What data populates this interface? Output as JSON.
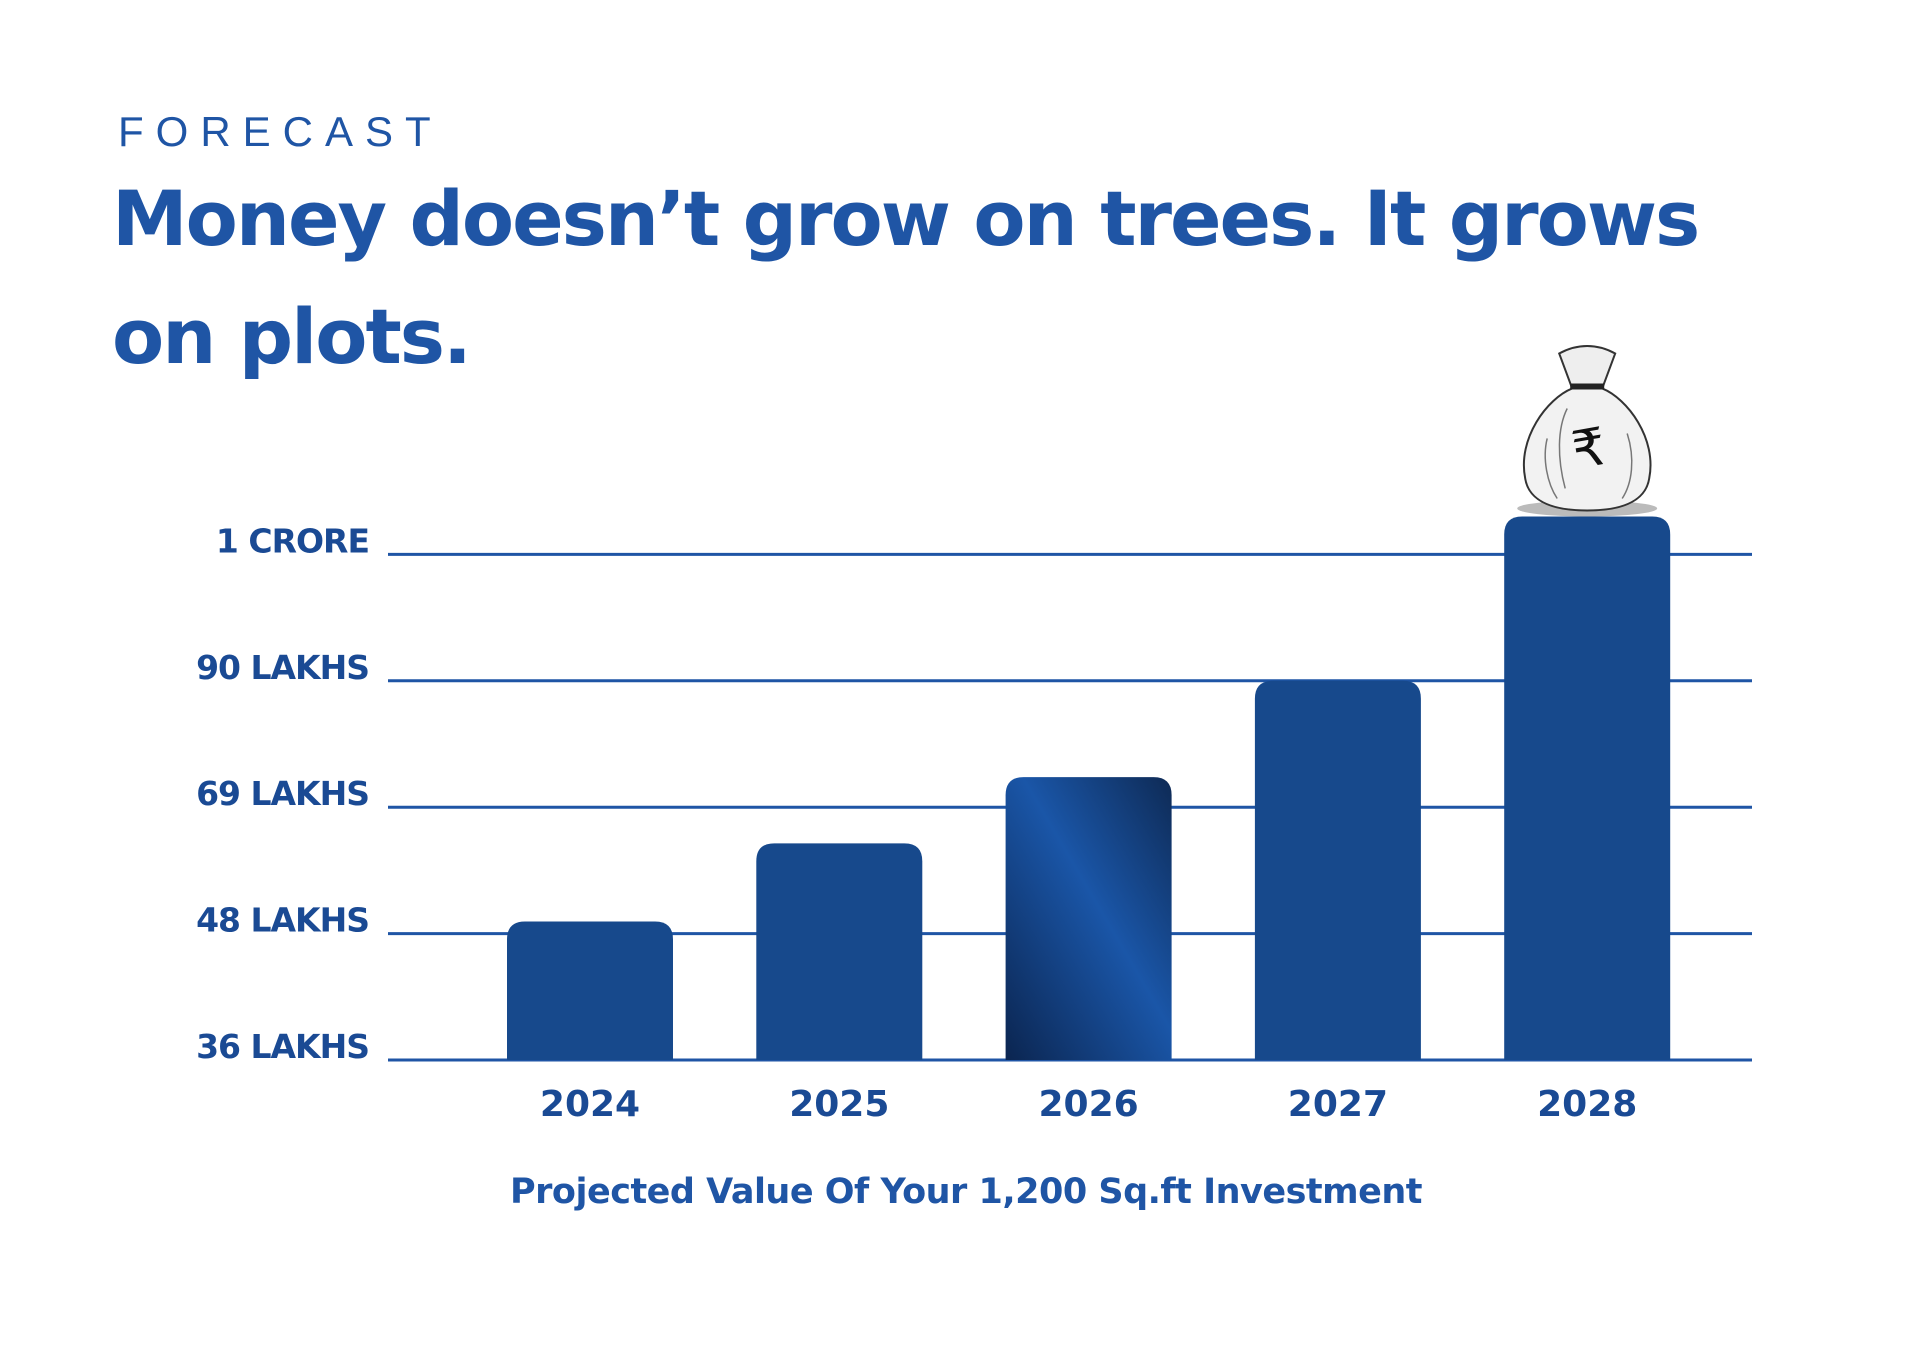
{
  "header": {
    "eyebrow": "FORECAST",
    "headline": "Money doesn’t grow on trees. It grows on plots."
  },
  "chart_data": {
    "type": "bar",
    "categories": [
      "2024",
      "2025",
      "2026",
      "2027",
      "2028"
    ],
    "values": [
      50,
      63,
      74,
      90,
      103
    ],
    "value_unit": "lakhs",
    "y_ticks": [
      {
        "value": 36,
        "label": "36 LAKHS"
      },
      {
        "value": 48,
        "label": "48 LAKHS"
      },
      {
        "value": 69,
        "label": "69 LAKHS"
      },
      {
        "value": 90,
        "label": "90 LAKHS"
      },
      {
        "value": 100,
        "label": "1 CRORE"
      }
    ],
    "y_scale": "categorical-spaced (ticks evenly spaced)",
    "xlabel": "Projected Value Of Your 1,200 Sq.ft Investment",
    "ylabel": "",
    "grid": true,
    "highlight_category": "2026",
    "annotation_icon": "money-bag-rupee-icon",
    "colors": {
      "bar": "#17498c",
      "grid": "#1f55a5",
      "text": "#1a4a94",
      "highlight_dark": "#0e2a55",
      "highlight_light": "#1a56a8"
    }
  }
}
